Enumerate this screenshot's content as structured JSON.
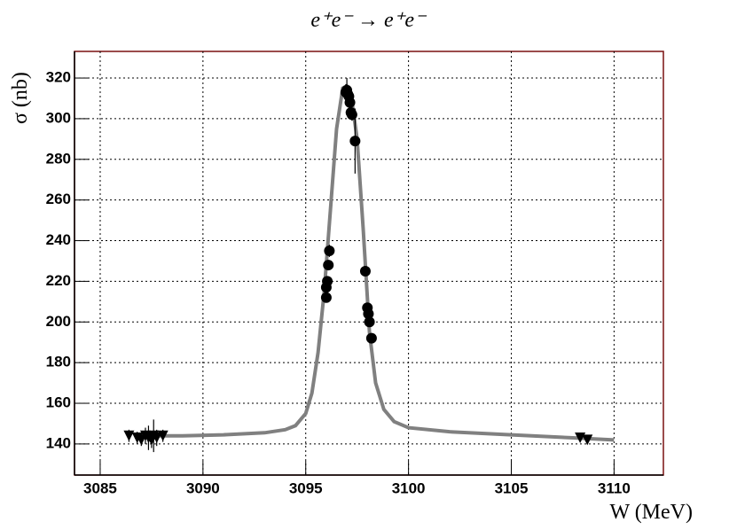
{
  "chart_data": {
    "type": "scatter",
    "title": "e⁺e⁻ → e⁺e⁻",
    "x_label": "W (MeV)",
    "y_label": "σ (nb)",
    "xlim": [
      3083.75,
      3112.4
    ],
    "ylim": [
      124.7,
      333.1
    ],
    "xticks": [
      3085,
      3090,
      3095,
      3100,
      3105,
      3110
    ],
    "yticks": [
      140,
      160,
      180,
      200,
      220,
      240,
      260,
      280,
      300,
      320
    ],
    "grid": true,
    "series": [
      {
        "mark": "line",
        "color": "#808080",
        "x": [
          3087,
          3089,
          3091,
          3093,
          3094,
          3094.5,
          3095,
          3095.3,
          3095.6,
          3095.9,
          3096.2,
          3096.5,
          3096.8,
          3097.0,
          3097.2,
          3097.5,
          3097.8,
          3098.1,
          3098.4,
          3098.8,
          3099.3,
          3100,
          3102,
          3105,
          3108,
          3110
        ],
        "values": [
          144,
          144,
          144.5,
          145.5,
          147,
          149,
          155,
          165,
          185,
          215,
          255,
          295,
          315,
          316,
          312,
          290,
          245,
          195,
          170,
          157,
          151,
          148,
          146,
          144.5,
          143,
          142
        ]
      },
      {
        "mark": "triangle",
        "color": "#000000",
        "x": [
          3086.4,
          3086.8,
          3087.0,
          3087.2,
          3087.35,
          3087.5,
          3087.6,
          3087.75,
          3088.05,
          3108.35,
          3108.7
        ],
        "values": [
          144,
          143,
          142,
          144,
          143,
          142,
          144,
          143,
          144,
          143,
          142
        ],
        "errors": [
          3,
          3,
          3,
          4,
          6,
          4,
          8,
          4,
          3,
          2,
          2
        ]
      },
      {
        "mark": "circle",
        "color": "#000000",
        "x": [
          3096.0,
          3096.0,
          3096.05,
          3096.1,
          3096.15,
          3096.95,
          3097.0,
          3097.05,
          3097.1,
          3097.15,
          3097.2,
          3097.25,
          3097.4,
          3097.9,
          3098.0,
          3098.05,
          3098.1,
          3098.2
        ],
        "values": [
          212,
          217,
          220,
          228,
          235,
          313,
          314,
          312,
          311,
          308,
          303,
          302,
          289,
          225,
          207,
          204,
          200,
          192
        ],
        "errors": [
          2,
          2,
          2,
          2,
          3,
          4,
          6,
          3,
          3,
          3,
          3,
          3,
          16,
          2,
          2,
          2,
          2,
          2
        ]
      }
    ]
  }
}
